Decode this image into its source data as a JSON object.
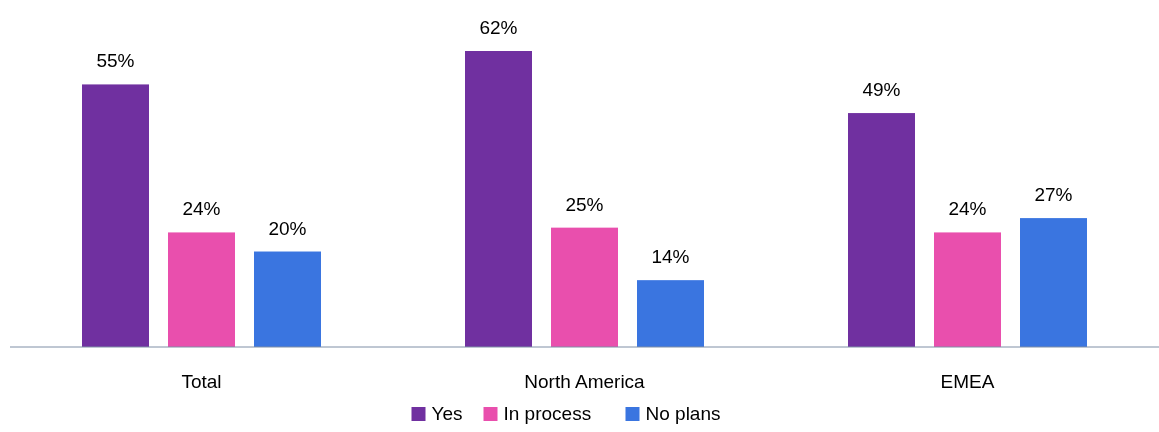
{
  "chart_data": {
    "type": "bar",
    "categories": [
      "Total",
      "North America",
      "EMEA"
    ],
    "series": [
      {
        "name": "Yes",
        "color": "#7030a0",
        "values": [
          55,
          62,
          49
        ],
        "value_labels": [
          "55%",
          "62%",
          "49%"
        ]
      },
      {
        "name": "In process",
        "color": "#e94fad",
        "values": [
          24,
          25,
          24
        ],
        "value_labels": [
          "24%",
          "25%",
          "24%"
        ]
      },
      {
        "name": "No plans",
        "color": "#3a75e0",
        "values": [
          20,
          14,
          27
        ],
        "value_labels": [
          "20%",
          "14%",
          "27%"
        ]
      }
    ],
    "legend": "bottom",
    "grid": false
  }
}
